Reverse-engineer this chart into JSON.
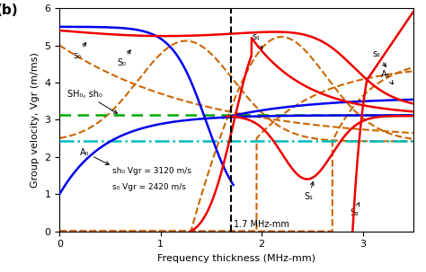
{
  "title_label": "(b)",
  "xlabel": "Frequency thickness (MHz-mm)",
  "ylabel": "Group velocity, Vgr (m/ms)",
  "xlim": [
    0,
    3.5
  ],
  "ylim": [
    0,
    6
  ],
  "xticks": [
    0,
    1,
    2,
    3
  ],
  "yticks": [
    0,
    1,
    2,
    3,
    4,
    5,
    6
  ],
  "vline_x": 1.7,
  "vline_label": "1.7 MHz-mm",
  "sh0_vgr": 3.12,
  "s0_vgr": 2.42,
  "sh0_label": "sh₀ Vgr = 3120 m/s",
  "s0_label": "s₀ Vgr = 2420 m/s",
  "sh0_sh0_label": "SH₀, sh₀",
  "A0_label": "A₀",
  "s0_small_label": "s₀",
  "S0_label": "S₀",
  "s1_label": "s₁",
  "s2_label": "s₂",
  "A1_label": "A₁",
  "S1_label": "S₁",
  "S2_label": "S₂",
  "color_blue": "#0000EE",
  "color_red": "#EE0000",
  "color_orange_dashed": "#CC6600",
  "color_green_dashed": "#00AA00",
  "color_cyan_dashed": "#00BBBB",
  "color_black_vline": "#000000"
}
